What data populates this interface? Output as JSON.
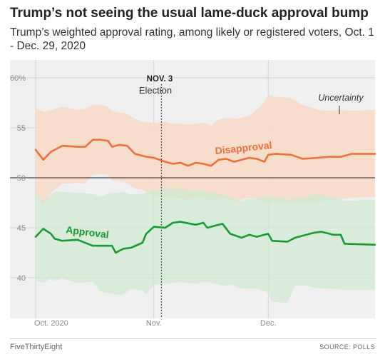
{
  "chart_data": {
    "type": "area",
    "title": "Trump’s not seeing the usual lame-duck approval bump",
    "subtitle": "Trump’s weighted approval rating, among likely or registered voters, Oct. 1 - Dec. 29, 2020",
    "xlabel": "",
    "ylabel": "",
    "x_ticks": [
      "Oct. 2020",
      "Nov.",
      "Dec."
    ],
    "y_ticks": [
      "60%",
      "55",
      "50",
      "45",
      "40"
    ],
    "ylim": [
      37,
      61
    ],
    "xlim": [
      "2020-10-01",
      "2020-12-29"
    ],
    "grid": true,
    "annotations": {
      "election_date": "NOV. 3",
      "election_label": "Election",
      "uncertainty_label": "Uncertainty"
    },
    "series": [
      {
        "name": "Disapproval",
        "color": "#ed713a",
        "band_color": "#f7d9c6",
        "x": [
          "2020-10-01",
          "2020-10-03",
          "2020-10-05",
          "2020-10-08",
          "2020-10-12",
          "2020-10-14",
          "2020-10-16",
          "2020-10-18",
          "2020-10-20",
          "2020-10-21",
          "2020-10-23",
          "2020-10-25",
          "2020-10-27",
          "2020-10-29",
          "2020-10-30",
          "2020-11-01",
          "2020-11-04",
          "2020-11-06",
          "2020-11-08",
          "2020-11-10",
          "2020-11-12",
          "2020-11-14",
          "2020-11-16",
          "2020-11-18",
          "2020-11-20",
          "2020-11-22",
          "2020-11-24",
          "2020-11-26",
          "2020-11-28",
          "2020-11-30",
          "2020-12-01",
          "2020-12-03",
          "2020-12-07",
          "2020-12-10",
          "2020-12-14",
          "2020-12-17",
          "2020-12-20",
          "2020-12-23",
          "2020-12-29"
        ],
        "values": [
          52.8,
          51.8,
          52.6,
          53.2,
          53.1,
          53.1,
          53.8,
          53.8,
          53.7,
          53.1,
          53.3,
          53.2,
          52.4,
          52.2,
          52.1,
          52.0,
          51.6,
          51.4,
          51.5,
          51.2,
          51.5,
          51.4,
          51.2,
          51.8,
          51.9,
          51.6,
          51.8,
          52.0,
          51.9,
          51.6,
          52.3,
          52.4,
          52.3,
          51.9,
          52.0,
          52.1,
          52.1,
          52.4,
          52.4
        ],
        "upper": [
          57.0,
          56.6,
          56.8,
          57.1,
          56.8,
          56.9,
          57.3,
          57.3,
          57.1,
          56.7,
          56.5,
          56.4,
          55.9,
          55.6,
          55.6,
          55.5,
          55.6,
          55.4,
          55.4,
          55.3,
          55.4,
          55.5,
          55.2,
          55.8,
          56.0,
          55.9,
          56.0,
          56.2,
          56.8,
          57.6,
          58.3,
          58.1,
          58.0,
          57.3,
          56.8,
          56.7,
          56.8,
          56.7,
          56.8
        ],
        "lower": [
          48.6,
          47.2,
          48.5,
          49.4,
          49.5,
          49.4,
          50.3,
          50.4,
          50.3,
          49.7,
          49.6,
          49.5,
          48.9,
          48.8,
          48.5,
          48.3,
          48.0,
          48.0,
          47.9,
          47.8,
          48.0,
          47.9,
          47.6,
          47.9,
          47.9,
          47.6,
          47.8,
          48.0,
          47.9,
          47.6,
          47.5,
          47.6,
          47.4,
          47.5,
          47.6,
          47.8,
          47.9,
          48.0,
          48.1
        ]
      },
      {
        "name": "Approval",
        "color": "#189b32",
        "band_color": "#cdeacf",
        "x": [
          "2020-10-01",
          "2020-10-03",
          "2020-10-05",
          "2020-10-06",
          "2020-10-08",
          "2020-10-12",
          "2020-10-16",
          "2020-10-18",
          "2020-10-21",
          "2020-10-22",
          "2020-10-24",
          "2020-10-26",
          "2020-10-29",
          "2020-10-30",
          "2020-11-01",
          "2020-11-04",
          "2020-11-06",
          "2020-11-08",
          "2020-11-12",
          "2020-11-14",
          "2020-11-15",
          "2020-11-19",
          "2020-11-21",
          "2020-11-24",
          "2020-11-26",
          "2020-11-28",
          "2020-12-01",
          "2020-12-02",
          "2020-12-06",
          "2020-12-08",
          "2020-12-11",
          "2020-12-13",
          "2020-12-15",
          "2020-12-18",
          "2020-12-20",
          "2020-12-21",
          "2020-12-29"
        ],
        "values": [
          44.1,
          44.9,
          44.4,
          43.9,
          43.7,
          43.8,
          43.2,
          43.2,
          43.2,
          42.5,
          42.9,
          43.0,
          43.5,
          44.4,
          45.1,
          45.0,
          45.5,
          45.6,
          45.3,
          45.5,
          45.0,
          45.4,
          44.4,
          44.0,
          44.3,
          44.1,
          44.4,
          43.7,
          43.6,
          44.0,
          44.3,
          44.5,
          44.6,
          44.3,
          44.3,
          43.4,
          43.3
        ],
        "upper": [
          48.6,
          47.6,
          48.3,
          48.6,
          48.6,
          48.5,
          48.4,
          48.1,
          48.6,
          48.4,
          48.6,
          48.3,
          48.4,
          48.5,
          48.7,
          48.9,
          49.0,
          48.9,
          48.7,
          48.7,
          48.5,
          48.4,
          48.0,
          47.7,
          47.9,
          47.9,
          48.3,
          48.1,
          47.8,
          48.0,
          48.1,
          48.3,
          48.3,
          48.0,
          47.9,
          47.7,
          47.8
        ],
        "lower": [
          39.7,
          39.5,
          39.9,
          39.7,
          39.9,
          39.5,
          39.6,
          38.6,
          38.4,
          38.3,
          38.3,
          38.9,
          38.7,
          38.3,
          39.3,
          39.4,
          39.5,
          39.6,
          39.4,
          39.6,
          39.6,
          39.2,
          39.3,
          38.9,
          38.9,
          38.9,
          38.5,
          37.6,
          37.5,
          39.2,
          39.2,
          39.0,
          38.9,
          38.9,
          38.8,
          38.8,
          38.8
        ]
      }
    ]
  },
  "footer": {
    "brand": "FiveThirtyEight",
    "source": "SOURCE: POLLS"
  }
}
